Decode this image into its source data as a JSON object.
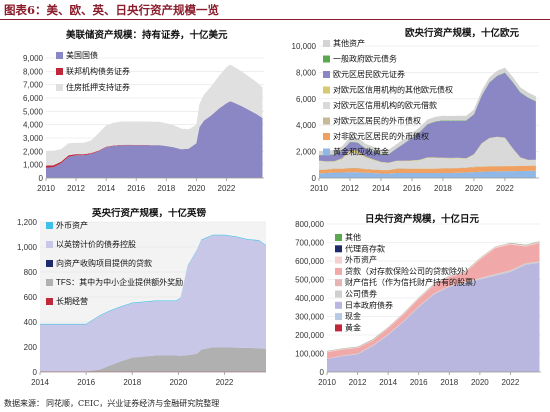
{
  "page_title": "图表6：美、欧、英、日央行资产规模一览",
  "source_label": "数据来源：",
  "source_text": "同花顺，CEIC，兴业证券经济与金融研究院整理",
  "chart_data": [
    {
      "id": "fed",
      "type": "area",
      "title": "美联储资产规模：持有证券，十亿美元",
      "ylim": [
        0,
        9000
      ],
      "yticks": [
        0,
        1000,
        2000,
        3000,
        4000,
        5000,
        6000,
        7000,
        8000,
        9000
      ],
      "xlim": [
        2010,
        2024.5
      ],
      "xticks": [
        2010,
        2012,
        2014,
        2016,
        2018,
        2020,
        2022
      ],
      "legend_position": "top-left",
      "x": [
        2010,
        2010.5,
        2011,
        2011.5,
        2012,
        2012.5,
        2013,
        2013.5,
        2014,
        2014.5,
        2015,
        2015.5,
        2016,
        2016.5,
        2017,
        2017.5,
        2018,
        2018.5,
        2019,
        2019.5,
        2020,
        2020.2,
        2020.5,
        2021,
        2021.5,
        2022,
        2022.25,
        2022.5,
        2023,
        2023.5,
        2024,
        2024.4
      ],
      "series": [
        {
          "name": "美国国债",
          "color": "#8a87c4",
          "values": [
            780,
            800,
            1100,
            1600,
            1700,
            1700,
            1800,
            2000,
            2300,
            2400,
            2450,
            2460,
            2460,
            2460,
            2460,
            2460,
            2400,
            2300,
            2150,
            2200,
            2600,
            3800,
            4300,
            4700,
            5200,
            5600,
            5750,
            5650,
            5400,
            5100,
            4800,
            4500
          ]
        },
        {
          "name": "联邦机构债务证券",
          "color": "#c0283a",
          "values": [
            150,
            150,
            120,
            100,
            90,
            80,
            70,
            55,
            45,
            40,
            35,
            30,
            25,
            20,
            10,
            5,
            3,
            2,
            2,
            2,
            2,
            2,
            2,
            2,
            2,
            2,
            2,
            2,
            2,
            2,
            2,
            2
          ]
        },
        {
          "name": "住房抵押支持证券",
          "color": "#e0e0e0",
          "values": [
            1100,
            1100,
            950,
            900,
            850,
            850,
            950,
            1300,
            1600,
            1700,
            1750,
            1750,
            1760,
            1760,
            1760,
            1760,
            1700,
            1650,
            1550,
            1450,
            1400,
            1750,
            1950,
            2200,
            2450,
            2700,
            2750,
            2700,
            2600,
            2500,
            2400,
            2300
          ]
        }
      ]
    },
    {
      "id": "ecb",
      "type": "area",
      "title": "欧央行资产规模，十亿欧元",
      "ylim": [
        0,
        10000
      ],
      "yticks": [
        0,
        2000,
        4000,
        6000,
        8000,
        10000
      ],
      "xlim": [
        2010,
        2024.2
      ],
      "xticks": [
        2010,
        2012,
        2014,
        2016,
        2018,
        2020,
        2022
      ],
      "legend_position": "top-left",
      "x": [
        2010,
        2010.5,
        2011,
        2011.5,
        2012,
        2012.5,
        2013,
        2013.5,
        2014,
        2014.5,
        2015,
        2015.5,
        2016,
        2016.5,
        2017,
        2017.5,
        2018,
        2018.5,
        2019,
        2019.5,
        2020,
        2020.5,
        2021,
        2021.5,
        2022,
        2022.5,
        2023,
        2023.5,
        2024
      ],
      "series": [
        {
          "name": "黄金和应收黄金",
          "color": "#8fb8e6",
          "values": [
            350,
            380,
            420,
            420,
            440,
            440,
            400,
            380,
            340,
            340,
            380,
            380,
            380,
            380,
            380,
            380,
            380,
            380,
            400,
            420,
            450,
            480,
            500,
            500,
            520,
            520,
            530,
            540,
            560
          ]
        },
        {
          "name": "对非欧元区居民的外币债权",
          "color": "#f0a060",
          "values": [
            260,
            260,
            270,
            270,
            280,
            280,
            260,
            250,
            260,
            260,
            300,
            300,
            320,
            320,
            320,
            320,
            340,
            340,
            350,
            350,
            360,
            370,
            370,
            370,
            380,
            380,
            380,
            380,
            380
          ]
        },
        {
          "name": "对欧元区居民的外币债权",
          "color": "#c7b897",
          "values": [
            30,
            30,
            40,
            50,
            50,
            50,
            40,
            30,
            30,
            30,
            40,
            40,
            40,
            40,
            40,
            40,
            30,
            30,
            30,
            30,
            50,
            40,
            30,
            30,
            30,
            30,
            20,
            20,
            20
          ]
        },
        {
          "name": "对欧元区信用机构的欧元借款",
          "color": "#d9d9d9",
          "values": [
            650,
            550,
            500,
            700,
            1200,
            1100,
            850,
            700,
            550,
            500,
            550,
            550,
            550,
            600,
            780,
            780,
            750,
            730,
            720,
            650,
            900,
            1700,
            2100,
            2200,
            2100,
            1300,
            600,
            400,
            400
          ]
        },
        {
          "name": "对欧元区信用机构的其他欧元债权",
          "color": "#d8c870",
          "values": [
            30,
            40,
            50,
            60,
            150,
            200,
            80,
            60,
            40,
            40,
            40,
            40,
            40,
            40,
            40,
            40,
            40,
            40,
            40,
            40,
            40,
            40,
            30,
            30,
            30,
            30,
            30,
            30,
            30
          ]
        },
        {
          "name": "欧元区居民欧元证券",
          "color": "#8a87c4",
          "values": [
            400,
            450,
            500,
            550,
            600,
            600,
            600,
            590,
            580,
            620,
            900,
            1300,
            1700,
            2100,
            2500,
            2700,
            2800,
            2800,
            2800,
            2850,
            3000,
            3600,
            4200,
            4600,
            4900,
            5000,
            4900,
            4700,
            4400
          ]
        },
        {
          "name": "一般政府欧元债务",
          "color": "#5aa84f",
          "values": [
            30,
            30,
            30,
            30,
            30,
            30,
            30,
            30,
            30,
            30,
            30,
            30,
            30,
            30,
            30,
            30,
            30,
            30,
            30,
            30,
            30,
            30,
            30,
            30,
            30,
            30,
            30,
            30,
            30
          ]
        },
        {
          "name": "其他资产",
          "color": "#d4d4d4",
          "values": [
            300,
            300,
            320,
            320,
            350,
            350,
            340,
            330,
            320,
            320,
            330,
            330,
            340,
            340,
            340,
            340,
            350,
            350,
            350,
            350,
            350,
            350,
            360,
            360,
            370,
            370,
            370,
            380,
            380
          ]
        }
      ]
    },
    {
      "id": "boe",
      "type": "area",
      "title": "英央行资产规模，十亿英镑",
      "ylim": [
        0,
        1200
      ],
      "yticks": [
        0,
        200,
        400,
        600,
        800,
        1000,
        1200
      ],
      "xlim": [
        2014,
        2023.8
      ],
      "xticks": [
        2014,
        2016,
        2018,
        2020,
        2022
      ],
      "legend_position": "top-left",
      "x": [
        2014,
        2015,
        2016,
        2016.6,
        2017,
        2017.5,
        2018,
        2019,
        2019.9,
        2020.1,
        2020.4,
        2020.8,
        2021,
        2021.5,
        2022,
        2022.5,
        2023,
        2023.5,
        2023.8
      ],
      "series": [
        {
          "name": "长期经营",
          "color": "#c0283a",
          "values": [
            5,
            5,
            5,
            5,
            5,
            5,
            5,
            5,
            5,
            5,
            5,
            5,
            5,
            5,
            5,
            5,
            5,
            5,
            5
          ]
        },
        {
          "name": "TFS：其中为中小企业提供额外奖励",
          "color": "#b0b0b0",
          "values": [
            0,
            0,
            0,
            15,
            45,
            80,
            110,
            127,
            127,
            125,
            130,
            140,
            175,
            193,
            193,
            190,
            188,
            185,
            180
          ]
        },
        {
          "name": "向资产收购项目提供的贷款",
          "color": "#1f2a6b",
          "values": [
            0,
            0,
            0,
            0,
            0,
            0,
            0,
            0,
            0,
            0,
            0,
            0,
            0,
            0,
            0,
            0,
            0,
            0,
            0
          ]
        },
        {
          "name": "以英镑计价的债券控股",
          "color": "#c9c7e8",
          "values": [
            375,
            375,
            375,
            430,
            435,
            435,
            435,
            435,
            435,
            460,
            710,
            825,
            875,
            895,
            895,
            885,
            865,
            860,
            825
          ]
        },
        {
          "name": "外币资产",
          "color": "#3fc0e8",
          "values": [
            5,
            5,
            5,
            5,
            5,
            5,
            5,
            5,
            5,
            5,
            5,
            5,
            5,
            5,
            5,
            5,
            5,
            5,
            5
          ]
        }
      ]
    },
    {
      "id": "boj",
      "type": "area",
      "title": "日央行资产规模，十亿日元",
      "ylim": [
        0,
        800000
      ],
      "yticks": [
        0,
        100000,
        200000,
        300000,
        400000,
        500000,
        600000,
        700000,
        800000
      ],
      "xlim": [
        2010,
        2024
      ],
      "xticks": [
        2010,
        2012,
        2014,
        2016,
        2018,
        2020,
        2022
      ],
      "legend_position": "top-left",
      "x": [
        2010,
        2011,
        2012,
        2013,
        2014,
        2015,
        2016,
        2017,
        2018,
        2019,
        2020,
        2021,
        2022,
        2023,
        2023.9
      ],
      "series": [
        {
          "name": "黄金",
          "color": "#c0283a",
          "values": [
            441,
            441,
            441,
            441,
            441,
            441,
            441,
            441,
            441,
            441,
            441,
            441,
            441,
            441,
            441
          ]
        },
        {
          "name": "现金",
          "color": "#b8c9e6",
          "values": [
            300,
            300,
            300,
            300,
            300,
            300,
            300,
            300,
            300,
            300,
            300,
            300,
            300,
            300,
            300
          ]
        },
        {
          "name": "日本政府债券",
          "color": "#b9b7df",
          "values": [
            70000,
            85000,
            95000,
            140000,
            200000,
            270000,
            350000,
            420000,
            460000,
            480000,
            500000,
            520000,
            540000,
            580000,
            590000
          ]
        },
        {
          "name": "公司债券",
          "color": "#cfcfcf",
          "values": [
            0,
            2000,
            3000,
            3000,
            3200,
            3200,
            3200,
            3200,
            3200,
            3200,
            6000,
            8000,
            8000,
            7000,
            6000
          ]
        },
        {
          "name": "财产信托（作为信托财产持有的股票）",
          "color": "#e6b4b4",
          "values": [
            1500,
            1500,
            1500,
            1500,
            1500,
            1400,
            1400,
            1300,
            1200,
            1000,
            900,
            800,
            700,
            600,
            500
          ]
        },
        {
          "name": "贷款（对存款保险公司的贷款除外）",
          "color": "#f0a8a8",
          "values": [
            35000,
            32000,
            30000,
            25000,
            30000,
            35000,
            40000,
            45000,
            48000,
            50000,
            100000,
            140000,
            140000,
            90000,
            100000
          ]
        },
        {
          "name": "外币资产",
          "color": "#f5d0d0",
          "values": [
            5000,
            5000,
            5000,
            5000,
            5000,
            6000,
            6000,
            6000,
            6000,
            6000,
            7000,
            7000,
            7000,
            7000,
            7000
          ]
        },
        {
          "name": "代理商存款",
          "color": "#1f2a6b",
          "values": [
            500,
            500,
            500,
            500,
            500,
            500,
            500,
            500,
            500,
            500,
            500,
            500,
            500,
            500,
            500
          ]
        },
        {
          "name": "其他",
          "color": "#5aa84f",
          "values": [
            1000,
            1000,
            1000,
            1000,
            1000,
            1000,
            1000,
            1000,
            1000,
            1000,
            1000,
            1000,
            1000,
            1000,
            1000
          ]
        }
      ]
    }
  ]
}
